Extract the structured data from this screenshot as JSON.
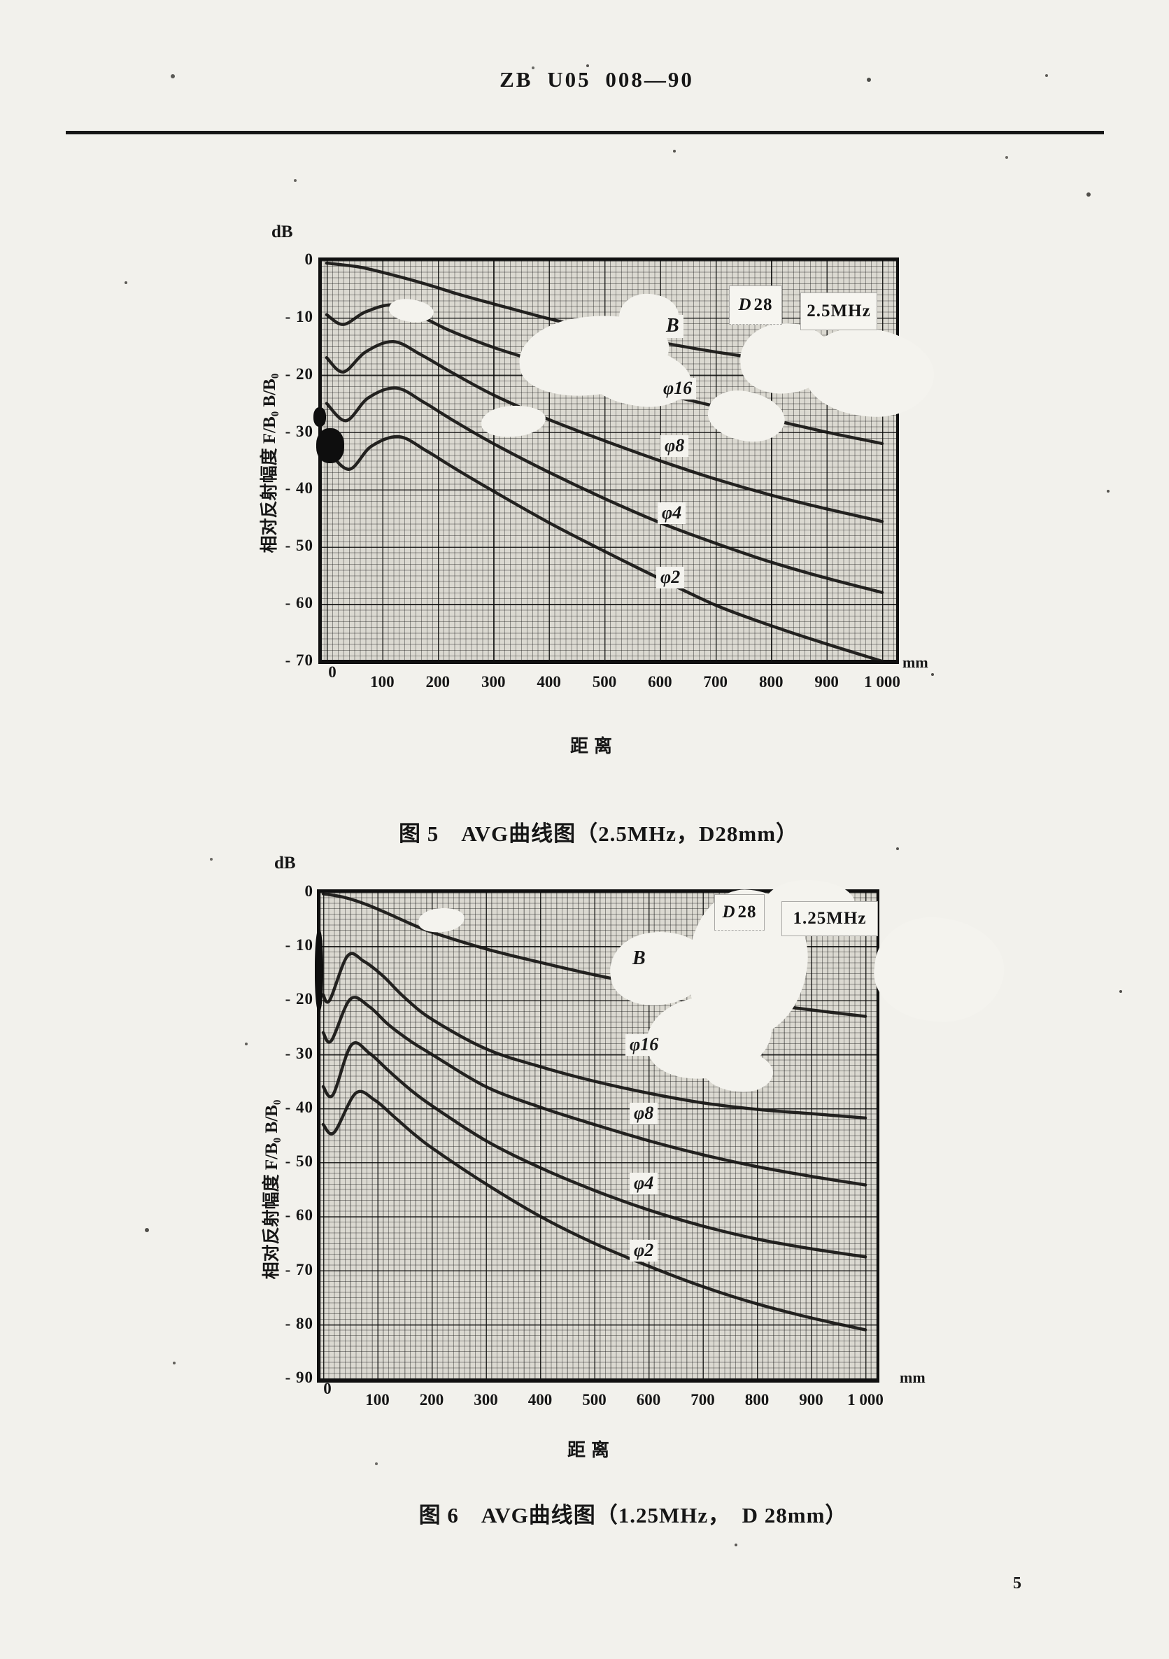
{
  "page": {
    "header": "ZB U05 008—90",
    "page_number": "5"
  },
  "chart_data": [
    {
      "type": "line",
      "figure_caption": "图 5　AVG曲线图（2.5MHz，D28mm）",
      "unit_y": "dB",
      "unit_x": "mm",
      "xlabel": "距离",
      "ylabel": "相对反射幅度 F/B₀ B/B₀",
      "probe_label_d": "D",
      "probe_label_size": "28",
      "freq_label": "2.5MHz",
      "xlim": [
        0,
        1000
      ],
      "ylim": [
        0,
        -70
      ],
      "grid": "fine-mm-paper",
      "yticks": [
        "0",
        "- 10",
        "- 20",
        "- 30",
        "- 40",
        "- 50",
        "- 60",
        "- 70"
      ],
      "xticks": [
        "0",
        "100",
        "200",
        "300",
        "400",
        "500",
        "600",
        "700",
        "800",
        "900",
        "1 000"
      ],
      "series": [
        {
          "name": "B",
          "points": [
            [
              0,
              -0.5
            ],
            [
              60,
              -1.2
            ],
            [
              120,
              -2.6
            ],
            [
              180,
              -4.2
            ],
            [
              240,
              -6
            ],
            [
              300,
              -7.6
            ],
            [
              400,
              -10.2
            ],
            [
              500,
              -12.4
            ],
            [
              600,
              -14.3
            ],
            [
              700,
              -16
            ],
            [
              800,
              -17.4
            ],
            [
              900,
              -18.6
            ],
            [
              1000,
              -19.6
            ]
          ]
        },
        {
          "name": "φ16",
          "points": [
            [
              0,
              -9.5
            ],
            [
              30,
              -11.2
            ],
            [
              70,
              -9
            ],
            [
              120,
              -7.8
            ],
            [
              170,
              -9.8
            ],
            [
              220,
              -12.2
            ],
            [
              300,
              -15.2
            ],
            [
              400,
              -18.2
            ],
            [
              500,
              -20.8
            ],
            [
              600,
              -23.2
            ],
            [
              700,
              -25.5
            ],
            [
              800,
              -27.8
            ],
            [
              900,
              -30
            ],
            [
              1000,
              -32
            ]
          ]
        },
        {
          "name": "φ8",
          "points": [
            [
              0,
              -17
            ],
            [
              30,
              -19.5
            ],
            [
              70,
              -16
            ],
            [
              120,
              -14.2
            ],
            [
              170,
              -16.5
            ],
            [
              220,
              -19.3
            ],
            [
              300,
              -23.5
            ],
            [
              400,
              -27.8
            ],
            [
              500,
              -31.5
            ],
            [
              600,
              -35
            ],
            [
              700,
              -38.2
            ],
            [
              800,
              -41
            ],
            [
              900,
              -43.4
            ],
            [
              1000,
              -45.6
            ]
          ]
        },
        {
          "name": "φ4",
          "points": [
            [
              0,
              -25
            ],
            [
              35,
              -28
            ],
            [
              75,
              -24
            ],
            [
              125,
              -22.3
            ],
            [
              175,
              -24.8
            ],
            [
              225,
              -27.8
            ],
            [
              300,
              -32
            ],
            [
              400,
              -37
            ],
            [
              500,
              -41.6
            ],
            [
              600,
              -45.8
            ],
            [
              700,
              -49.4
            ],
            [
              800,
              -52.7
            ],
            [
              900,
              -55.5
            ],
            [
              1000,
              -58
            ]
          ]
        },
        {
          "name": "φ2",
          "points": [
            [
              0,
              -33
            ],
            [
              40,
              -36.5
            ],
            [
              80,
              -32.5
            ],
            [
              130,
              -30.8
            ],
            [
              180,
              -33.3
            ],
            [
              230,
              -36.3
            ],
            [
              300,
              -40.3
            ],
            [
              400,
              -45.8
            ],
            [
              500,
              -50.8
            ],
            [
              600,
              -55.6
            ],
            [
              700,
              -60.2
            ],
            [
              800,
              -63.8
            ],
            [
              900,
              -67
            ],
            [
              1000,
              -70
            ]
          ]
        }
      ]
    },
    {
      "type": "line",
      "figure_caption": "图 6　AVG曲线图（1.25MHz，　D 28mm）",
      "unit_y": "dB",
      "unit_x": "mm",
      "xlabel": "距离",
      "ylabel": "相对反射幅度 F/B₀ B/B₀",
      "probe_label_d": "D",
      "probe_label_size": "28",
      "freq_label": "1.25MHz",
      "xlim": [
        0,
        1000
      ],
      "ylim": [
        0,
        -90
      ],
      "grid": "fine-mm-paper",
      "yticks": [
        "0",
        "- 10",
        "- 20",
        "- 30",
        "- 40",
        "- 50",
        "- 60",
        "- 70",
        "- 80",
        "- 90"
      ],
      "xticks": [
        "0",
        "100",
        "200",
        "300",
        "400",
        "500",
        "600",
        "700",
        "800",
        "900",
        "1 000"
      ],
      "series": [
        {
          "name": "B",
          "points": [
            [
              0,
              -0.3
            ],
            [
              40,
              -1
            ],
            [
              80,
              -2.3
            ],
            [
              120,
              -4
            ],
            [
              160,
              -5.8
            ],
            [
              200,
              -7.4
            ],
            [
              300,
              -10.5
            ],
            [
              400,
              -13
            ],
            [
              500,
              -15.3
            ],
            [
              600,
              -17.3
            ],
            [
              700,
              -19
            ],
            [
              800,
              -20.5
            ],
            [
              900,
              -21.8
            ],
            [
              1000,
              -23
            ]
          ]
        },
        {
          "name": "φ16",
          "points": [
            [
              0,
              -19
            ],
            [
              12,
              -20
            ],
            [
              45,
              -11.8
            ],
            [
              75,
              -12.8
            ],
            [
              110,
              -15.5
            ],
            [
              150,
              -19.5
            ],
            [
              200,
              -23.5
            ],
            [
              300,
              -29
            ],
            [
              400,
              -32.3
            ],
            [
              500,
              -35
            ],
            [
              600,
              -37.2
            ],
            [
              700,
              -39
            ],
            [
              800,
              -40.2
            ],
            [
              900,
              -41
            ],
            [
              1000,
              -41.8
            ]
          ]
        },
        {
          "name": "φ8",
          "points": [
            [
              0,
              -26
            ],
            [
              15,
              -27.5
            ],
            [
              50,
              -19.8
            ],
            [
              85,
              -21.2
            ],
            [
              120,
              -24.5
            ],
            [
              160,
              -27.5
            ],
            [
              200,
              -30
            ],
            [
              300,
              -36
            ],
            [
              400,
              -39.8
            ],
            [
              500,
              -43
            ],
            [
              600,
              -46
            ],
            [
              700,
              -48.6
            ],
            [
              800,
              -50.8
            ],
            [
              900,
              -52.6
            ],
            [
              1000,
              -54.2
            ]
          ]
        },
        {
          "name": "φ4",
          "points": [
            [
              0,
              -36
            ],
            [
              18,
              -37.5
            ],
            [
              52,
              -28.3
            ],
            [
              85,
              -29.8
            ],
            [
              120,
              -33
            ],
            [
              160,
              -36.5
            ],
            [
              200,
              -39.5
            ],
            [
              300,
              -46
            ],
            [
              400,
              -51
            ],
            [
              500,
              -55.2
            ],
            [
              600,
              -58.8
            ],
            [
              700,
              -61.8
            ],
            [
              800,
              -64.2
            ],
            [
              900,
              -66
            ],
            [
              1000,
              -67.5
            ]
          ]
        },
        {
          "name": "φ2",
          "points": [
            [
              0,
              -43
            ],
            [
              20,
              -44.5
            ],
            [
              60,
              -37.2
            ],
            [
              95,
              -38.5
            ],
            [
              130,
              -41.5
            ],
            [
              170,
              -45
            ],
            [
              210,
              -48
            ],
            [
              300,
              -54
            ],
            [
              400,
              -60
            ],
            [
              500,
              -65
            ],
            [
              600,
              -69.2
            ],
            [
              700,
              -73
            ],
            [
              800,
              -76.2
            ],
            [
              900,
              -78.8
            ],
            [
              1000,
              -81
            ]
          ]
        }
      ]
    }
  ]
}
